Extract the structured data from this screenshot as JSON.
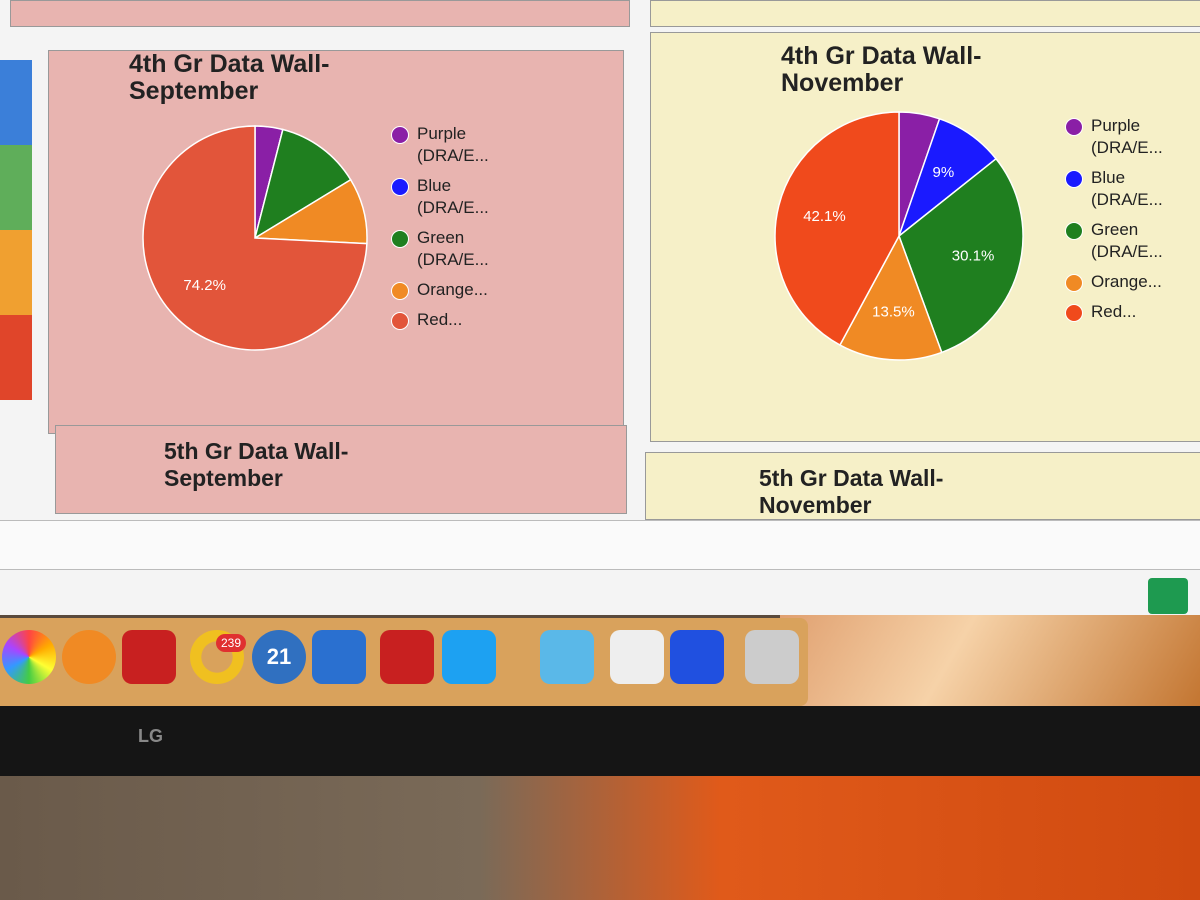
{
  "chart_data": [
    {
      "type": "pie",
      "title": "4th Gr Data Wall-\nSeptember",
      "categories": [
        "Purple (DRA/E...",
        "Blue (DRA/E...",
        "Green (DRA/E...",
        "Orange...",
        "Red..."
      ],
      "values": [
        4,
        0,
        12.3,
        9.5,
        74.2
      ],
      "value_labels": [
        null,
        null,
        null,
        null,
        "74.2%"
      ],
      "colors": [
        "#8a1fa6",
        "#1a1aff",
        "#1f7f1f",
        "#f08a24",
        "#e2553a"
      ]
    },
    {
      "type": "pie",
      "title": "4th Gr Data Wall-\nNovember",
      "categories": [
        "Purple (DRA/E...",
        "Blue (DRA/E...",
        "Green (DRA/E...",
        "Orange...",
        "Red..."
      ],
      "values": [
        5.3,
        9,
        30.1,
        13.5,
        42.1
      ],
      "value_labels": [
        null,
        "9%",
        "30.1%",
        "13.5%",
        "42.1%"
      ],
      "colors": [
        "#8a1fa6",
        "#1a1aff",
        "#1f7f1f",
        "#f08a24",
        "#f04a1c"
      ]
    }
  ],
  "panels": [
    {
      "title": "5th Gr Data Wall-\nSeptember"
    },
    {
      "title": "5th Gr Data Wall-\nNovember"
    }
  ],
  "dock": {
    "badge": "239",
    "calendar": "21"
  },
  "monitor_brand": "LG"
}
